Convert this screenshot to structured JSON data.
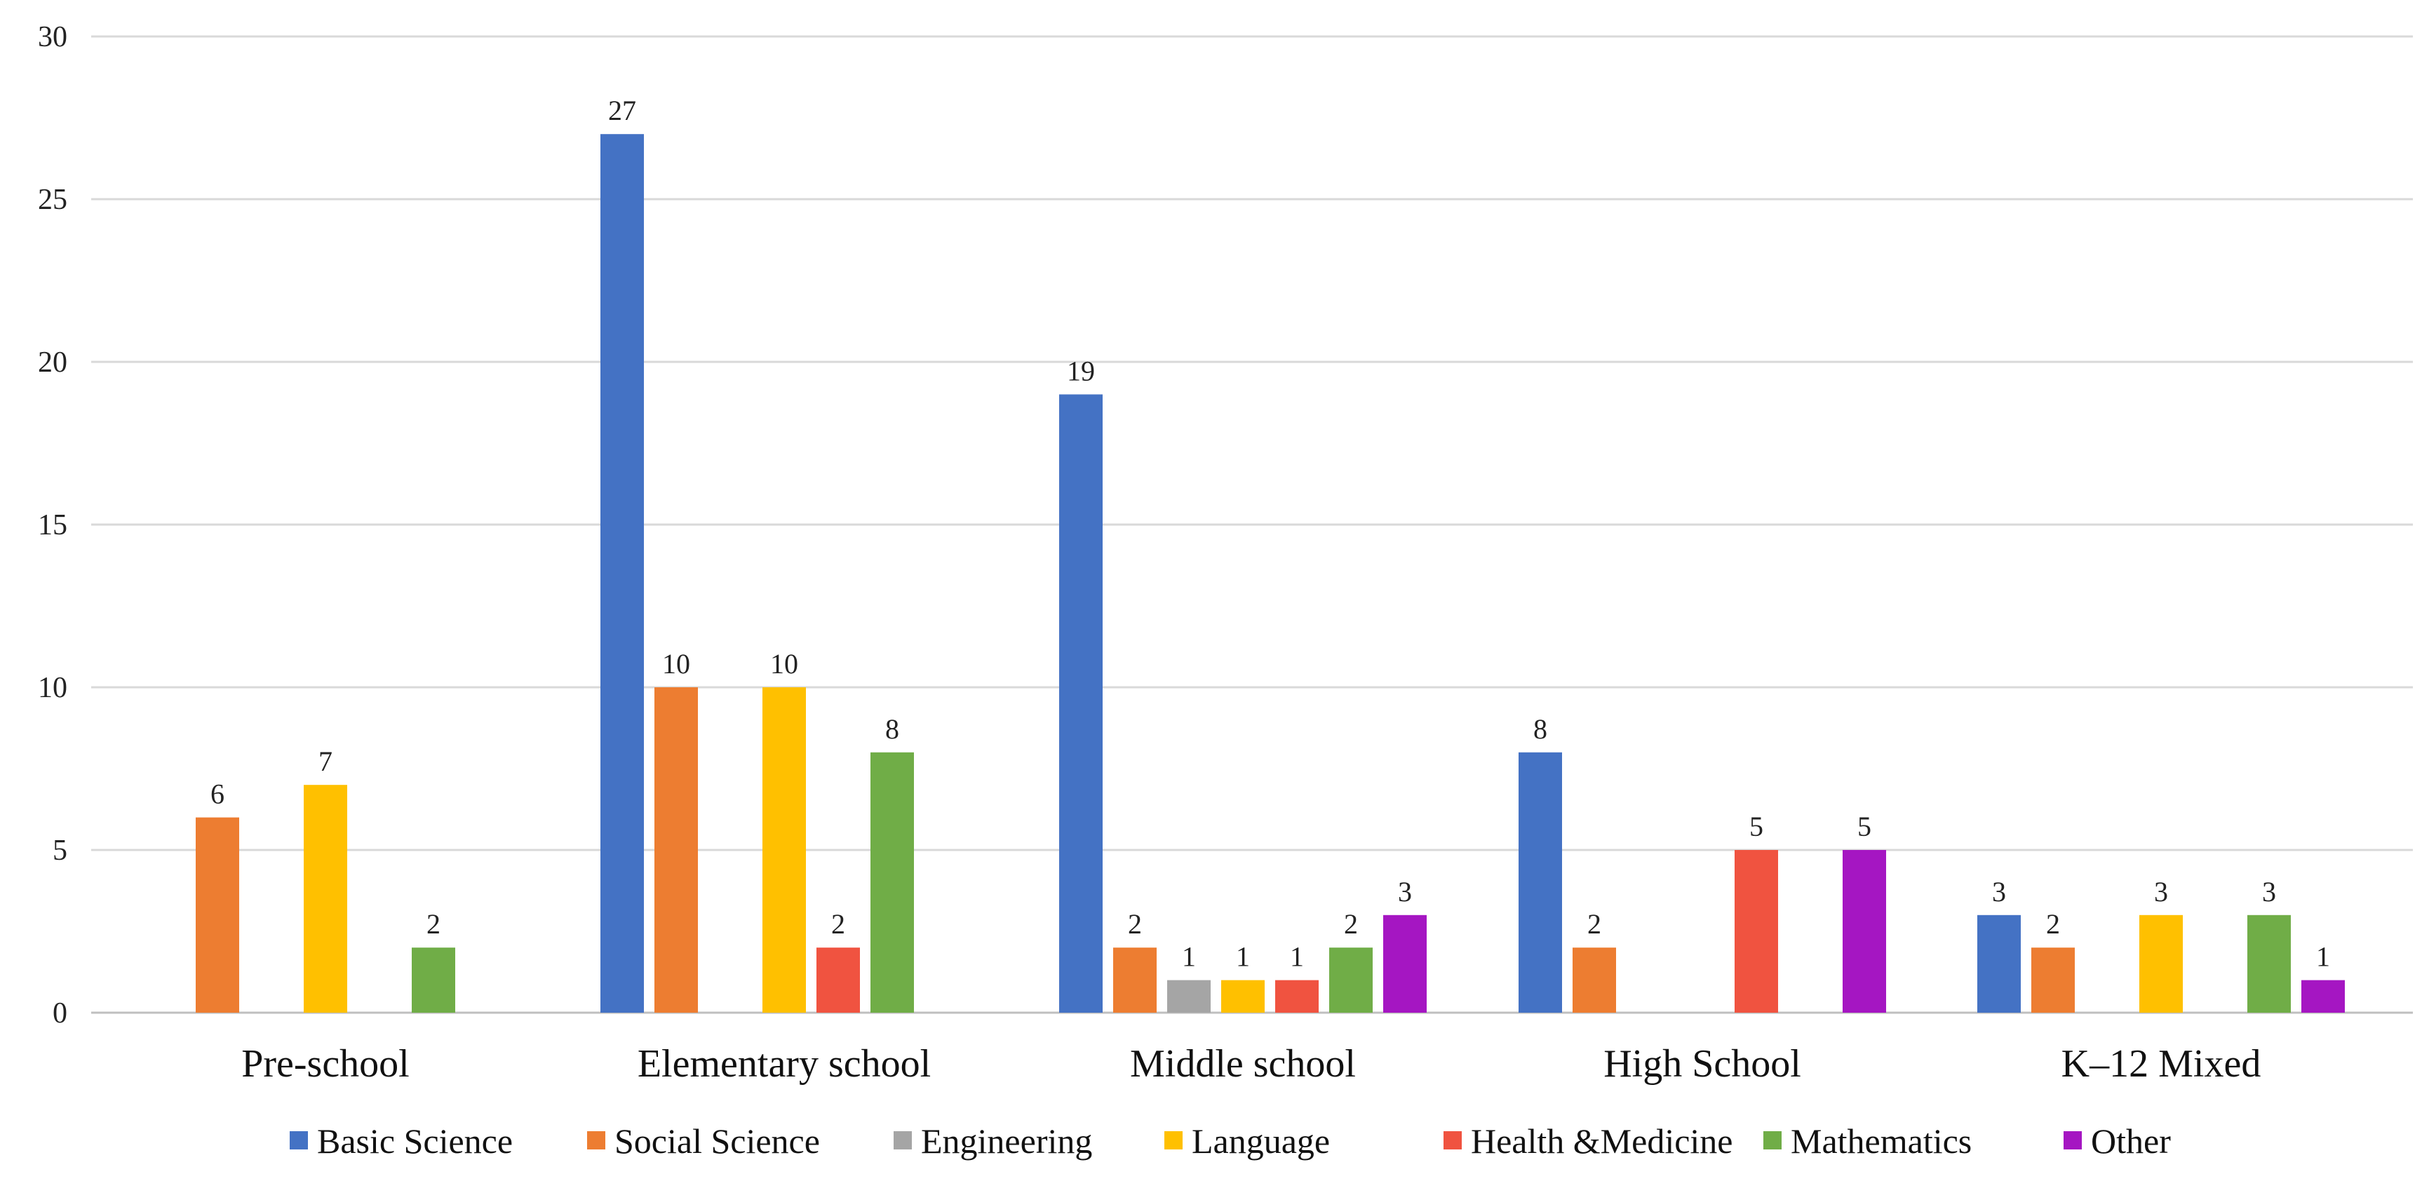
{
  "chart_data": {
    "type": "bar",
    "title": "",
    "xlabel": "",
    "ylabel": "",
    "ylim": [
      0,
      30
    ],
    "yticks": [
      0,
      5,
      10,
      15,
      20,
      25,
      30
    ],
    "grid": true,
    "legend_position": "bottom",
    "categories": [
      "Pre-school",
      "Elementary school",
      "Middle school",
      "High School",
      "K–12 Mixed"
    ],
    "series": [
      {
        "name": "Basic Science",
        "color": "#4472C4",
        "values": [
          null,
          27,
          19,
          8,
          3
        ]
      },
      {
        "name": "Social Science",
        "color": "#ED7D31",
        "values": [
          6,
          10,
          2,
          2,
          2
        ]
      },
      {
        "name": "Engineering",
        "color": "#A5A5A5",
        "values": [
          null,
          null,
          1,
          null,
          null
        ]
      },
      {
        "name": "Language",
        "color": "#FFC000",
        "values": [
          7,
          10,
          1,
          null,
          3
        ]
      },
      {
        "name": "Health &Medicine",
        "color": "#F05340",
        "values": [
          null,
          2,
          1,
          5,
          null
        ]
      },
      {
        "name": "Mathematics",
        "color": "#70AD47",
        "values": [
          2,
          8,
          2,
          null,
          3
        ]
      },
      {
        "name": "Other",
        "color": "#A516C2",
        "values": [
          null,
          null,
          3,
          5,
          1
        ]
      }
    ]
  }
}
